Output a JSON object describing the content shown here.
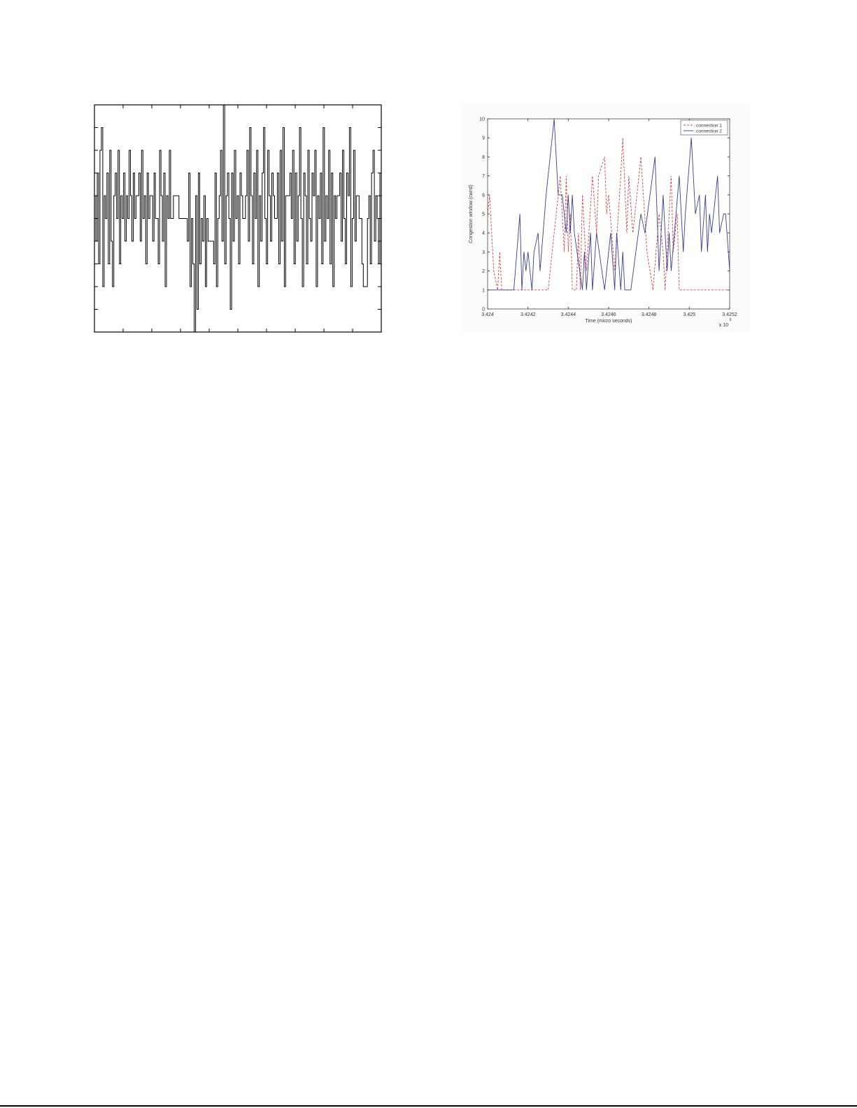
{
  "figures": {
    "left": {
      "chart_data": {
        "type": "line",
        "title": "",
        "xlabel": "",
        "ylabel": "",
        "ylim": [
          0,
          10
        ],
        "xlim": [
          0,
          10
        ],
        "x_ticks": 10,
        "y_ticks": 10,
        "grid": false,
        "step": true,
        "series": [
          {
            "color": "#000000",
            "values": [
              6,
              4,
              7,
              3,
              8,
              9,
              2,
              6,
              5,
              7,
              3,
              8,
              4,
              2,
              6,
              7,
              5,
              8,
              3,
              6,
              5,
              7,
              4,
              6,
              5,
              8,
              6,
              4,
              7,
              5,
              6,
              6,
              7,
              4,
              8,
              5,
              6,
              3,
              7,
              5,
              6,
              6,
              4,
              7,
              5,
              5,
              3,
              8,
              6,
              4,
              7,
              2,
              6,
              5,
              8,
              5,
              5,
              6,
              6,
              6,
              6,
              5,
              5,
              5,
              5,
              5,
              5,
              4,
              7,
              2,
              5,
              3,
              0,
              6,
              1,
              7,
              3,
              5,
              4,
              6,
              2,
              5,
              4,
              4,
              4,
              4,
              3,
              7,
              2,
              5,
              6,
              8,
              4,
              10,
              3,
              6,
              7,
              5,
              1,
              7,
              4,
              8,
              5,
              6,
              3,
              7,
              6,
              5,
              5,
              6,
              8,
              4,
              9,
              6,
              3,
              7,
              5,
              8,
              2,
              6,
              4,
              7,
              9,
              5,
              3,
              8,
              6,
              4,
              7,
              6,
              5,
              5,
              7,
              3,
              8,
              4,
              9,
              2,
              6,
              6,
              6,
              7,
              5,
              8,
              3,
              7,
              4,
              6,
              9,
              5,
              2,
              7,
              6,
              3,
              8,
              5,
              4,
              7,
              6,
              8,
              2,
              6,
              5,
              7,
              3,
              9,
              4,
              6,
              5,
              8,
              3,
              7,
              2,
              6,
              5,
              6,
              6,
              7,
              4,
              8,
              5,
              3,
              7,
              6,
              9,
              2,
              5,
              8,
              4,
              6,
              6,
              5,
              5,
              3,
              2,
              2,
              2,
              5,
              6,
              3,
              7,
              8,
              4,
              6,
              5,
              3,
              7
            ]
          }
        ]
      }
    },
    "right": {
      "chart_data": {
        "type": "line",
        "title": "",
        "xlabel": "Time (micro seconds)",
        "ylabel": "Congestion window (cwnd)",
        "x_multiplier": "x 10",
        "x_multiplier_exp": "9",
        "xlim": [
          3.424,
          3.4252
        ],
        "ylim": [
          0,
          10
        ],
        "x_tick_labels": [
          "3.424",
          "3.4242",
          "3.4244",
          "3.4246",
          "3.4248",
          "3.425",
          "3.4252"
        ],
        "y_tick_labels": [
          "0",
          "1",
          "2",
          "3",
          "4",
          "5",
          "6",
          "7",
          "8",
          "9",
          "10"
        ],
        "grid": false,
        "legend": "top-right",
        "series": [
          {
            "name": "connection 1",
            "color": "#d04040",
            "dash": true,
            "x": [
              3.424,
              3.42401,
              3.42403,
              3.42405,
              3.42406,
              3.42407,
              3.4243,
              3.42436,
              3.42438,
              3.42439,
              3.4244,
              3.42441,
              3.42442,
              3.42444,
              3.42445,
              3.42446,
              3.42447,
              3.42449,
              3.42452,
              3.42454,
              3.42455,
              3.42458,
              3.42459,
              3.4246,
              3.42463,
              3.42466,
              3.42467,
              3.42469,
              3.4247,
              3.42472,
              3.42475,
              3.42476,
              3.42479,
              3.42482,
              3.42485,
              3.42487,
              3.42488,
              3.4249,
              3.42491,
              3.42492,
              3.42494,
              3.42495,
              3.4252
            ],
            "y": [
              5,
              6,
              2,
              1,
              3,
              1,
              1,
              7,
              3,
              7,
              3,
              5,
              1,
              1,
              4,
              1,
              6,
              2,
              7,
              4,
              7,
              8,
              5,
              6,
              2,
              7,
              9,
              4,
              7,
              4,
              7,
              8,
              3,
              1,
              5,
              3,
              1,
              5,
              7,
              3,
              5,
              1,
              1
            ]
          },
          {
            "name": "connection 2",
            "color": "#3a3f8f",
            "dash": false,
            "x": [
              3.424,
              3.42413,
              3.42416,
              3.42417,
              3.42418,
              3.42419,
              3.4242,
              3.42422,
              3.42423,
              3.42425,
              3.42426,
              3.42429,
              3.42433,
              3.42435,
              3.42437,
              3.42439,
              3.4244,
              3.42441,
              3.42442,
              3.42443,
              3.42447,
              3.42448,
              3.42449,
              3.42451,
              3.42452,
              3.42454,
              3.42458,
              3.42461,
              3.42463,
              3.42464,
              3.42466,
              3.42467,
              3.42468,
              3.42471,
              3.42476,
              3.42478,
              3.42483,
              3.42485,
              3.42487,
              3.42489,
              3.4249,
              3.42491,
              3.42495,
              3.42497,
              3.42498,
              3.42501,
              3.42503,
              3.42505,
              3.42506,
              3.42508,
              3.42509,
              3.4251,
              3.42511,
              3.42514,
              3.42515,
              3.42517,
              3.42518,
              3.4252
            ],
            "y": [
              1,
              1,
              5,
              1,
              3,
              2,
              3,
              1,
              3,
              4,
              2,
              6,
              10,
              6,
              6,
              4,
              6,
              4,
              6,
              4,
              1,
              3,
              1,
              4,
              1,
              4,
              1,
              4,
              1,
              4,
              1,
              3,
              1,
              1,
              5,
              4,
              8,
              2,
              6,
              2,
              4,
              2,
              7,
              3,
              5,
              9,
              5,
              6,
              3,
              6,
              3,
              5,
              4,
              7,
              4,
              5,
              5,
              2
            ]
          }
        ]
      }
    }
  }
}
